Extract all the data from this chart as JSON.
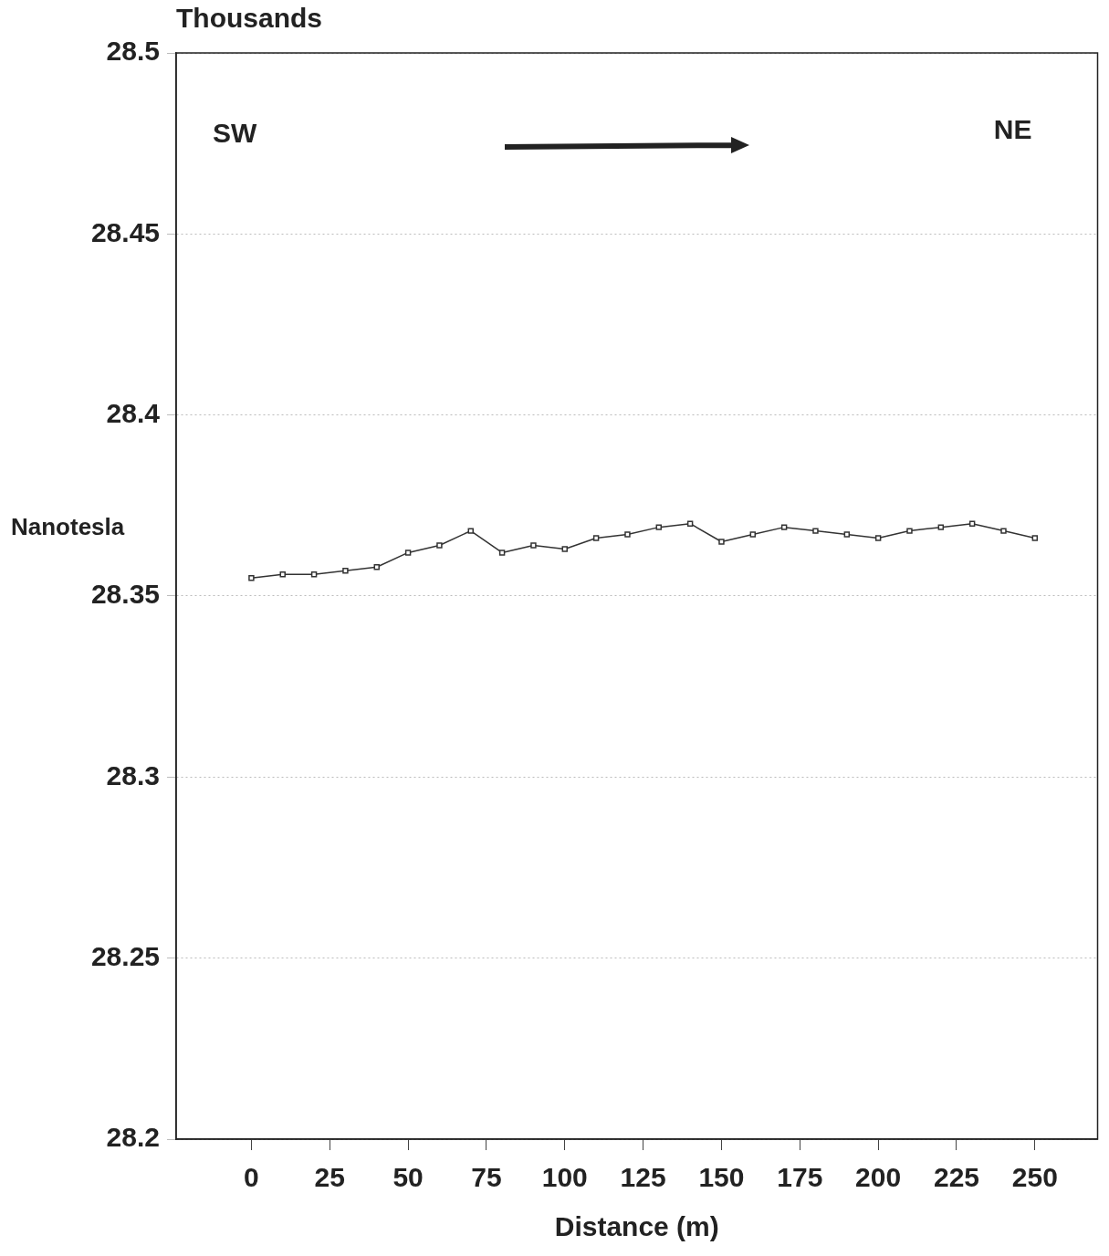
{
  "chart_data": {
    "type": "line",
    "xlabel": "Distance (m)",
    "ylabel": "Nanotesla",
    "x": [
      0,
      10,
      20,
      30,
      40,
      50,
      60,
      70,
      80,
      90,
      100,
      110,
      120,
      130,
      140,
      150,
      160,
      170,
      180,
      190,
      200,
      210,
      220,
      230,
      240,
      250
    ],
    "series": [
      {
        "color": "#333333",
        "values": [
          28.355,
          28.356,
          28.356,
          28.357,
          28.358,
          28.362,
          28.364,
          28.368,
          28.362,
          28.364,
          28.363,
          28.366,
          28.367,
          28.369,
          28.37,
          28.365,
          28.367,
          28.369,
          28.368,
          28.367,
          28.366,
          28.368,
          28.369,
          28.37,
          28.368,
          28.366
        ]
      }
    ],
    "xlim": [
      -24,
      270
    ],
    "xticks": [
      0,
      25,
      50,
      75,
      100,
      125,
      150,
      175,
      200,
      225,
      250
    ],
    "ylim": [
      28.2,
      28.5
    ],
    "yticks": [
      28.2,
      28.25,
      28.3,
      28.35,
      28.4,
      28.45,
      28.5
    ],
    "grid": "y",
    "marker": "square",
    "line_style": "solid",
    "legend": false,
    "annotations": [
      "Thousands",
      "SW",
      "NE"
    ]
  }
}
